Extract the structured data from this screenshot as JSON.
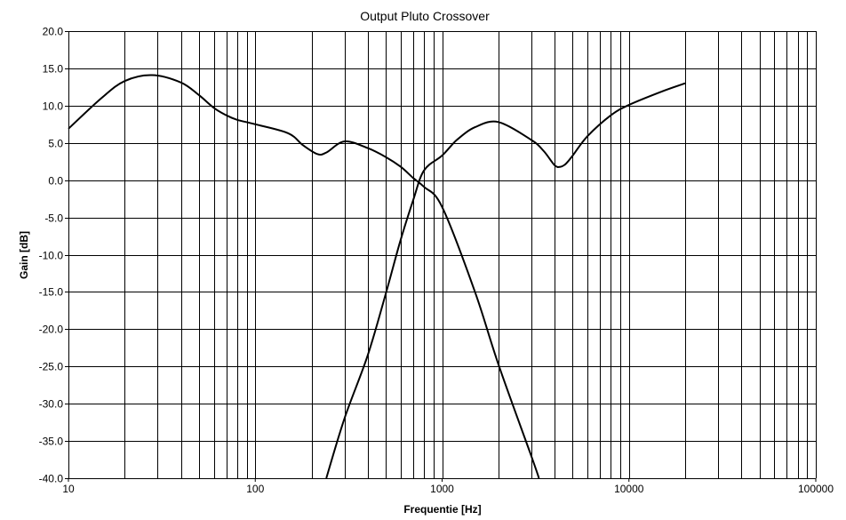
{
  "chart_data": {
    "type": "line",
    "title": "Output Pluto Crossover",
    "xlabel": "Frequentie [Hz]",
    "ylabel": "Gain [dB]",
    "xscale": "log",
    "xlim": [
      10,
      100000
    ],
    "ylim": [
      -40,
      20
    ],
    "grid": true,
    "legend": "none",
    "x_ticks": [
      "10",
      "100",
      "1000",
      "10000",
      "100000"
    ],
    "y_ticks": [
      "20.0",
      "15.0",
      "10.0",
      "5.0",
      "0.0",
      "-5.0",
      "-10.0",
      "-15.0",
      "-20.0",
      "-25.0",
      "-30.0",
      "-35.0",
      "-40.0"
    ],
    "line_color": "#000000",
    "series": [
      {
        "x": [
          10,
          15,
          20,
          28,
          40,
          50,
          60,
          70,
          80,
          100,
          150,
          180,
          215,
          240,
          300,
          400,
          500,
          600,
          700,
          800,
          1000,
          1500,
          2000,
          3000,
          3300
        ],
        "y": [
          6.9,
          11.0,
          13.3,
          14.1,
          13.1,
          11.4,
          9.7,
          8.7,
          8.1,
          7.5,
          6.3,
          4.7,
          3.5,
          3.7,
          5.2,
          4.3,
          3.1,
          1.8,
          0.3,
          -0.9,
          -3.6,
          -15,
          -24.7,
          -37,
          -40
        ]
      },
      {
        "x": [
          240,
          300,
          400,
          500,
          600,
          700,
          800,
          1000,
          1200,
          1500,
          2000,
          3000,
          3500,
          4000,
          4300,
          4600,
          5000,
          6000,
          8000,
          10000,
          15000,
          20000
        ],
        "y": [
          -40,
          -32,
          -23.5,
          -15.2,
          -8,
          -2.7,
          1.3,
          3.3,
          5.4,
          7.1,
          7.8,
          5.4,
          3.9,
          2.0,
          1.8,
          2.2,
          3.3,
          5.9,
          8.7,
          10.1,
          11.9,
          13.0
        ]
      }
    ]
  }
}
